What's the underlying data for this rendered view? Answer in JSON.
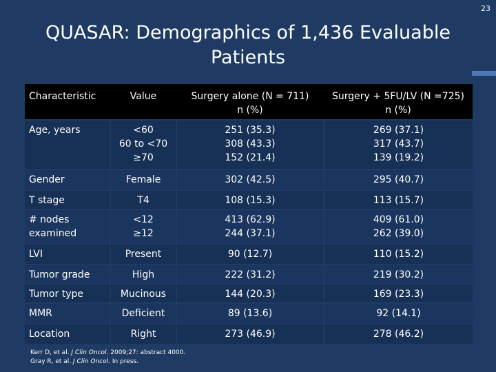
{
  "slide_number": "23",
  "title_line1": "QUASAR: Demographics of 1,436 Evaluable",
  "title_line2": "Patients",
  "table": {
    "headers": {
      "characteristic": "Characteristic",
      "value": "Value",
      "surgery_alone_1": "Surgery alone (N = 711)",
      "surgery_alone_2": "n (%)",
      "surgery_5fu_1": "Surgery + 5FU/LV (N =725)",
      "surgery_5fu_2": "n (%)"
    },
    "rows": [
      {
        "characteristic": [
          "Age, years"
        ],
        "values": [
          "<60",
          "60 to <70",
          "≥70"
        ],
        "surgery_alone": [
          "251 (35.3)",
          "308 (43.3)",
          "152 (21.4)"
        ],
        "surgery_5fu": [
          "269 (37.1)",
          "317 (43.7)",
          "139 (19.2)"
        ]
      },
      {
        "characteristic": [
          "Gender"
        ],
        "values": [
          "Female"
        ],
        "surgery_alone": [
          "302 (42.5)"
        ],
        "surgery_5fu": [
          "295 (40.7)"
        ]
      },
      {
        "characteristic": [
          "T stage"
        ],
        "values": [
          "T4"
        ],
        "surgery_alone": [
          "108 (15.3)"
        ],
        "surgery_5fu": [
          "113 (15.7)"
        ]
      },
      {
        "characteristic": [
          "# nodes",
          "examined"
        ],
        "values": [
          "<12",
          "≥12"
        ],
        "surgery_alone": [
          "413 (62.9)",
          "244 (37.1)"
        ],
        "surgery_5fu": [
          "409 (61.0)",
          "262 (39.0)"
        ]
      },
      {
        "characteristic": [
          "LVI"
        ],
        "values": [
          "Present"
        ],
        "surgery_alone": [
          "90 (12.7)"
        ],
        "surgery_5fu": [
          "110 (15.2)"
        ]
      },
      {
        "characteristic": [
          "Tumor grade"
        ],
        "values": [
          "High"
        ],
        "surgery_alone": [
          "222 (31.2)"
        ],
        "surgery_5fu": [
          "219 (30.2)"
        ]
      },
      {
        "characteristic": [
          "Tumor type"
        ],
        "values": [
          "Mucinous"
        ],
        "surgery_alone": [
          "144 (20.3)"
        ],
        "surgery_5fu": [
          "169 (23.3)"
        ]
      },
      {
        "characteristic": [
          "MMR"
        ],
        "values": [
          "Deficient"
        ],
        "surgery_alone": [
          "89 (13.6)"
        ],
        "surgery_5fu": [
          "92 (14.1)"
        ]
      },
      {
        "characteristic": [
          "Location"
        ],
        "values": [
          "Right"
        ],
        "surgery_alone": [
          "273 (46.9)"
        ],
        "surgery_5fu": [
          "278 (46.2)"
        ]
      }
    ]
  },
  "footnote": {
    "line1_prefix": "Kerr D, et al. ",
    "line1_journal": "J Clin Oncol.",
    "line1_suffix": " 2009;27: abstract 4000.",
    "line2_prefix": "Gray R, et al. ",
    "line2_journal": "J Clin Oncol.",
    "line2_suffix": " In press."
  },
  "colors": {
    "background": "#1f3b63",
    "header_row": "#000000",
    "accent": "#4f79b7"
  }
}
